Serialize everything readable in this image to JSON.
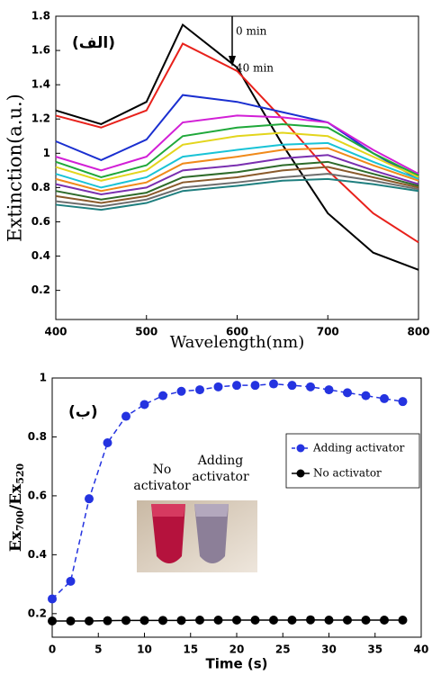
{
  "chart_data": [
    {
      "type": "line",
      "panel_label": "(الف)",
      "xlabel": "Wavelength(nm)",
      "ylabel": "Extinction(a.u.)",
      "annotations": [
        "0 min",
        "40 min"
      ],
      "x": [
        400,
        450,
        500,
        540,
        600,
        650,
        700,
        750,
        800
      ],
      "xlim": [
        400,
        800
      ],
      "xticks": [
        400,
        500,
        600,
        700,
        800
      ],
      "ylim": [
        0.03,
        1.8
      ],
      "yticks": [
        0.2,
        0.4,
        0.6,
        0.8,
        1,
        1.2,
        1.4,
        1.6,
        1.8
      ],
      "series": [
        {
          "color": "#000000",
          "values": [
            1.25,
            1.17,
            1.3,
            1.75,
            1.5,
            1.05,
            0.65,
            0.42,
            0.32
          ]
        },
        {
          "color": "#e8211b",
          "values": [
            1.22,
            1.15,
            1.25,
            1.64,
            1.48,
            1.2,
            0.9,
            0.65,
            0.48
          ]
        },
        {
          "color": "#1a2fd0",
          "values": [
            1.07,
            0.96,
            1.08,
            1.34,
            1.3,
            1.24,
            1.18,
            1.0,
            0.85
          ]
        },
        {
          "color": "#d21fd6",
          "values": [
            0.98,
            0.9,
            0.98,
            1.18,
            1.22,
            1.21,
            1.18,
            1.02,
            0.88
          ]
        },
        {
          "color": "#1fa83a",
          "values": [
            0.95,
            0.86,
            0.93,
            1.1,
            1.15,
            1.17,
            1.15,
            1.0,
            0.87
          ]
        },
        {
          "color": "#e3d51c",
          "values": [
            0.92,
            0.84,
            0.9,
            1.05,
            1.1,
            1.12,
            1.1,
            0.98,
            0.86
          ]
        },
        {
          "color": "#19c3d6",
          "values": [
            0.88,
            0.8,
            0.86,
            0.98,
            1.02,
            1.05,
            1.06,
            0.95,
            0.85
          ]
        },
        {
          "color": "#f08a1a",
          "values": [
            0.85,
            0.78,
            0.83,
            0.94,
            0.98,
            1.02,
            1.03,
            0.93,
            0.84
          ]
        },
        {
          "color": "#7a2fb0",
          "values": [
            0.82,
            0.76,
            0.8,
            0.9,
            0.93,
            0.97,
            0.99,
            0.9,
            0.82
          ]
        },
        {
          "color": "#2e6b2a",
          "values": [
            0.78,
            0.73,
            0.77,
            0.86,
            0.89,
            0.93,
            0.95,
            0.88,
            0.81
          ]
        },
        {
          "color": "#8a5a2b",
          "values": [
            0.75,
            0.71,
            0.75,
            0.83,
            0.86,
            0.9,
            0.92,
            0.86,
            0.8
          ]
        },
        {
          "color": "#6d6d6d",
          "values": [
            0.72,
            0.69,
            0.73,
            0.8,
            0.83,
            0.86,
            0.88,
            0.84,
            0.79
          ]
        },
        {
          "color": "#1f7f7f",
          "values": [
            0.7,
            0.67,
            0.71,
            0.78,
            0.81,
            0.84,
            0.85,
            0.82,
            0.78
          ]
        }
      ]
    },
    {
      "type": "line",
      "panel_label": "(ب)",
      "xlabel": "Time (s)",
      "ylabel": [
        "Ex",
        "700",
        "/Ex",
        "520"
      ],
      "inset_labels": [
        [
          "No",
          "activator"
        ],
        [
          "Adding",
          "activator"
        ]
      ],
      "legend": "right",
      "x": [
        0,
        2,
        4,
        6,
        8,
        10,
        12,
        14,
        16,
        18,
        20,
        22,
        24,
        26,
        28,
        30,
        32,
        34,
        36,
        38
      ],
      "xlim": [
        0,
        40
      ],
      "xticks": [
        0,
        5,
        10,
        15,
        20,
        25,
        30,
        35,
        40
      ],
      "ylim": [
        0.12,
        1.0
      ],
      "yticks": [
        0.2,
        0.4,
        0.6,
        0.8,
        1
      ],
      "series": [
        {
          "name": "Adding activator",
          "color": "#2433e0",
          "line_style": "dashed",
          "values": [
            0.25,
            0.31,
            0.59,
            0.78,
            0.87,
            0.91,
            0.94,
            0.955,
            0.96,
            0.97,
            0.975,
            0.975,
            0.98,
            0.975,
            0.97,
            0.96,
            0.95,
            0.94,
            0.93,
            0.92
          ]
        },
        {
          "name": "No activator",
          "color": "#000000",
          "line_style": "solid",
          "values": [
            0.175,
            0.175,
            0.175,
            0.176,
            0.177,
            0.177,
            0.177,
            0.177,
            0.178,
            0.178,
            0.178,
            0.178,
            0.178,
            0.178,
            0.179,
            0.178,
            0.178,
            0.178,
            0.178,
            0.178
          ]
        }
      ]
    }
  ]
}
